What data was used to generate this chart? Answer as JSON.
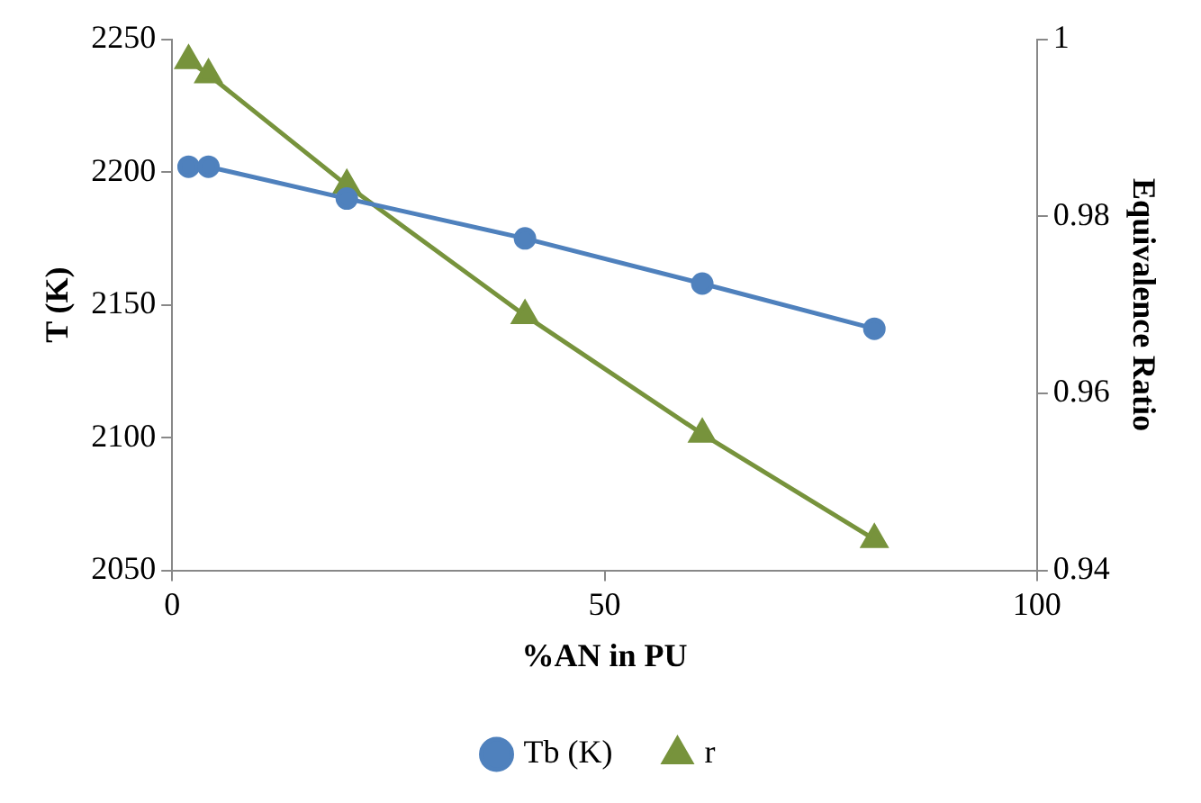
{
  "chart_data": {
    "type": "line",
    "xlabel": "%AN in PU",
    "ylabel": "T (K)",
    "y2label": "Equivalence Ratio",
    "xlim": [
      0,
      100
    ],
    "xticks": [
      0,
      50,
      100
    ],
    "ylim": [
      2050,
      2250
    ],
    "yticks": [
      2050,
      2100,
      2150,
      2200,
      2250
    ],
    "y2lim": [
      0.94,
      1
    ],
    "y2ticks": [
      0.94,
      0.96,
      0.98,
      1
    ],
    "grid": false,
    "legend": "bottom",
    "line_style": "solid",
    "series": [
      {
        "name": "Tb (K)",
        "color": "#4f81bd",
        "marker": "circle",
        "x": [
          1.9,
          4.2,
          20.2,
          40.8,
          61.3,
          81.2
        ],
        "values": [
          2202,
          2202,
          2190,
          2175,
          2158,
          2141
        ]
      },
      {
        "name": "r",
        "color": "#77933c",
        "marker": "triangle",
        "axis": "y2",
        "x": [
          1.9,
          4.2,
          20.2,
          40.8,
          61.3,
          81.2
        ],
        "values": [
          0.9976,
          0.996,
          0.9835,
          0.9688,
          0.9554,
          0.9435
        ]
      }
    ]
  }
}
